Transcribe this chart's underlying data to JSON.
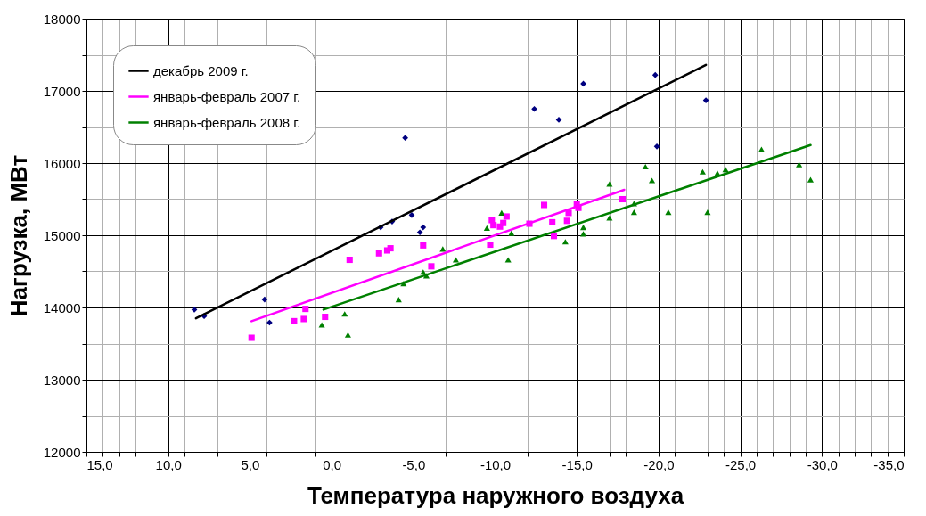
{
  "chart_data": {
    "type": "scatter",
    "xlabel": "Температура наружного воздуха",
    "ylabel": "Нагрузка, МВт",
    "xlim": [
      15,
      -35
    ],
    "xticks": [
      {
        "value": 15,
        "label": "15,0"
      },
      {
        "value": 14,
        "label": null
      },
      {
        "value": 13,
        "label": null
      },
      {
        "value": 12,
        "label": null
      },
      {
        "value": 11,
        "label": null
      },
      {
        "value": 10,
        "label": "10,0"
      },
      {
        "value": 9,
        "label": null
      },
      {
        "value": 8,
        "label": null
      },
      {
        "value": 7,
        "label": null
      },
      {
        "value": 6,
        "label": null
      },
      {
        "value": 5,
        "label": "5,0"
      },
      {
        "value": 4,
        "label": null
      },
      {
        "value": 3,
        "label": null
      },
      {
        "value": 2,
        "label": null
      },
      {
        "value": 1,
        "label": null
      },
      {
        "value": 0,
        "label": "0,0"
      },
      {
        "value": -1,
        "label": null
      },
      {
        "value": -2,
        "label": null
      },
      {
        "value": -3,
        "label": null
      },
      {
        "value": -4,
        "label": null
      },
      {
        "value": -5,
        "label": "-5,0"
      },
      {
        "value": -6,
        "label": null
      },
      {
        "value": -7,
        "label": null
      },
      {
        "value": -8,
        "label": null
      },
      {
        "value": -9,
        "label": null
      },
      {
        "value": -10,
        "label": "-10,0"
      },
      {
        "value": -11,
        "label": null
      },
      {
        "value": -12,
        "label": null
      },
      {
        "value": -13,
        "label": null
      },
      {
        "value": -14,
        "label": null
      },
      {
        "value": -15,
        "label": "-15,0"
      },
      {
        "value": -16,
        "label": null
      },
      {
        "value": -17,
        "label": null
      },
      {
        "value": -18,
        "label": null
      },
      {
        "value": -19,
        "label": null
      },
      {
        "value": -20,
        "label": "-20,0"
      },
      {
        "value": -21,
        "label": null
      },
      {
        "value": -22,
        "label": null
      },
      {
        "value": -23,
        "label": null
      },
      {
        "value": -24,
        "label": null
      },
      {
        "value": -25,
        "label": "-25,0"
      },
      {
        "value": -26,
        "label": null
      },
      {
        "value": -27,
        "label": null
      },
      {
        "value": -28,
        "label": null
      },
      {
        "value": -29,
        "label": null
      },
      {
        "value": -30,
        "label": "-30,0"
      },
      {
        "value": -31,
        "label": null
      },
      {
        "value": -32,
        "label": null
      },
      {
        "value": -33,
        "label": null
      },
      {
        "value": -34,
        "label": null
      },
      {
        "value": -35,
        "label": "-35,0"
      }
    ],
    "ylim": [
      12000,
      18000
    ],
    "yticks": [
      12000,
      {
        "value": 12500,
        "label": null
      },
      13000,
      {
        "value": 13500,
        "label": null
      },
      14000,
      {
        "value": 14500,
        "label": null
      },
      15000,
      {
        "value": 15500,
        "label": null
      },
      16000,
      {
        "value": 16500,
        "label": null
      },
      17000,
      {
        "value": 17500,
        "label": null
      },
      18000
    ],
    "grid": true,
    "legend": "top left",
    "series": [
      {
        "type": "scatter",
        "marker": "diamond",
        "color": "#000080",
        "x": [
          8.4,
          7.8,
          4.1,
          3.8,
          -4.5,
          -3.0,
          -3.7,
          -4.9,
          -5.4,
          -5.6,
          -12.4,
          -13.9,
          -15.4,
          -19.8,
          -22.9,
          -19.9
        ],
        "values": [
          13970,
          13880,
          14110,
          13790,
          16350,
          15110,
          15190,
          15280,
          15040,
          15110,
          16750,
          16600,
          17100,
          17220,
          16870,
          16230
        ]
      },
      {
        "type": "scatter",
        "marker": "square",
        "color": "#ff00ff",
        "x": [
          4.9,
          2.3,
          1.7,
          1.6,
          0.4,
          -1.1,
          -2.9,
          -3.4,
          -3.6,
          -5.6,
          -6.1,
          -9.7,
          -9.8,
          -9.9,
          -10.3,
          -10.5,
          -10.7,
          -12.1,
          -13.0,
          -13.5,
          -13.6,
          -14.4,
          -14.5,
          -15.0,
          -15.1,
          -17.8
        ],
        "values": [
          13580,
          13810,
          13840,
          13980,
          13870,
          14660,
          14750,
          14790,
          14820,
          14860,
          14570,
          14870,
          15210,
          15140,
          15120,
          15170,
          15260,
          15160,
          15420,
          15180,
          14990,
          15200,
          15310,
          15430,
          15380,
          15500
        ]
      },
      {
        "type": "scatter",
        "marker": "triangle",
        "color": "#008000",
        "x": [
          0.6,
          -0.8,
          -1.0,
          -4.1,
          -4.4,
          -5.6,
          -5.8,
          -6.8,
          -7.6,
          -9.5,
          -10.4,
          -10.8,
          -11.0,
          -14.3,
          -15.4,
          -15.4,
          -17.0,
          -17.0,
          -18.5,
          -18.5,
          -19.2,
          -19.6,
          -20.6,
          -22.7,
          -23.0,
          -23.6,
          -24.1,
          -26.3,
          -28.6,
          -29.3
        ],
        "values": [
          13760,
          13910,
          13620,
          14110,
          14330,
          14490,
          14440,
          14810,
          14660,
          15100,
          15310,
          14660,
          15030,
          14910,
          15110,
          15020,
          15710,
          15240,
          15440,
          15320,
          15950,
          15760,
          15320,
          15880,
          15320,
          15860,
          15910,
          16190,
          15980,
          15770
        ]
      },
      {
        "type": "line",
        "name": "декабрь 2009 г.",
        "color": "#000000",
        "x": [
          8.3,
          -22.9
        ],
        "values": [
          13850,
          17360
        ]
      },
      {
        "type": "line",
        "name": "январь-февраль 2007 г.",
        "color": "#ff00ff",
        "x": [
          4.9,
          -17.9
        ],
        "values": [
          13810,
          15630
        ]
      },
      {
        "type": "line",
        "name": "январь-февраль 2008 г.",
        "color": "#008000",
        "x": [
          0.5,
          -29.3
        ],
        "values": [
          13970,
          16250
        ]
      }
    ]
  }
}
